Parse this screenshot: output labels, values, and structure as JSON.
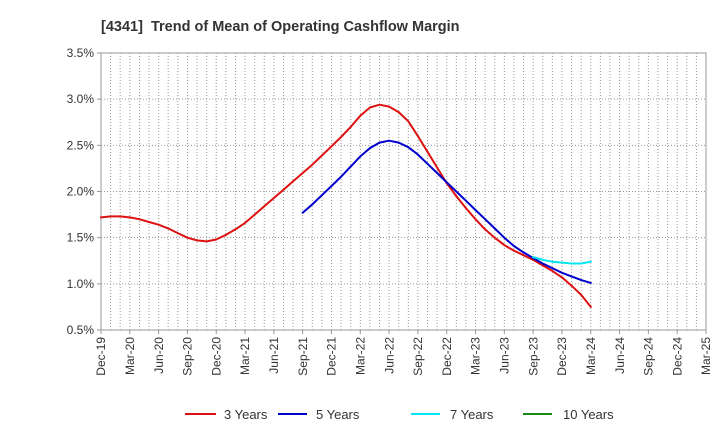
{
  "chart_data": {
    "type": "line",
    "title": "[4341]  Trend of Mean of Operating Cashflow Margin",
    "x_ticks": [
      "Dec-19",
      "Mar-20",
      "Jun-20",
      "Sep-20",
      "Dec-20",
      "Mar-21",
      "Jun-21",
      "Sep-21",
      "Dec-21",
      "Mar-22",
      "Jun-22",
      "Sep-22",
      "Dec-22",
      "Mar-23",
      "Jun-23",
      "Sep-23",
      "Dec-23",
      "Mar-24",
      "Jun-24",
      "Sep-24",
      "Dec-24",
      "Mar-25"
    ],
    "y_ticks": [
      {
        "value": 0.5,
        "label": "0.5%"
      },
      {
        "value": 1.0,
        "label": "1.0%"
      },
      {
        "value": 1.5,
        "label": "1.5%"
      },
      {
        "value": 2.0,
        "label": "2.0%"
      },
      {
        "value": 2.5,
        "label": "2.5%"
      },
      {
        "value": 3.0,
        "label": "3.0%"
      },
      {
        "value": 3.5,
        "label": "3.5%"
      }
    ],
    "ylim": [
      0.5,
      3.5
    ],
    "grid": true,
    "series": [
      {
        "name": "3 Years",
        "color": "#dd1111",
        "start": "Dec-19",
        "values": [
          1.72,
          1.73,
          1.73,
          1.72,
          1.7,
          1.67,
          1.64,
          1.6,
          1.55,
          1.5,
          1.47,
          1.46,
          1.48,
          1.53,
          1.59,
          1.66,
          1.75,
          1.84,
          1.93,
          2.02,
          2.11,
          2.2,
          2.29,
          2.39,
          2.49,
          2.59,
          2.7,
          2.82,
          2.91,
          2.94,
          2.92,
          2.86,
          2.76,
          2.6,
          2.43,
          2.26,
          2.09,
          1.95,
          1.82,
          1.7,
          1.59,
          1.5,
          1.42,
          1.36,
          1.31,
          1.26,
          1.2,
          1.14,
          1.07,
          0.98,
          0.88,
          0.75
        ]
      },
      {
        "name": "5 Years",
        "color": "#0000cc",
        "start": "Sep-21",
        "values": [
          1.77,
          1.86,
          1.96,
          2.06,
          2.16,
          2.27,
          2.38,
          2.47,
          2.53,
          2.55,
          2.53,
          2.48,
          2.4,
          2.3,
          2.2,
          2.1,
          2.0,
          1.9,
          1.8,
          1.7,
          1.6,
          1.5,
          1.41,
          1.34,
          1.28,
          1.22,
          1.17,
          1.12,
          1.08,
          1.04,
          1.01
        ]
      },
      {
        "name": "7 Years",
        "color": "#00e5ee",
        "start": "Sep-23",
        "values": [
          1.29,
          1.26,
          1.24,
          1.23,
          1.22,
          1.22,
          1.24
        ]
      },
      {
        "name": "10 Years",
        "color": "#1a8a1a",
        "start": null,
        "values": []
      }
    ]
  }
}
